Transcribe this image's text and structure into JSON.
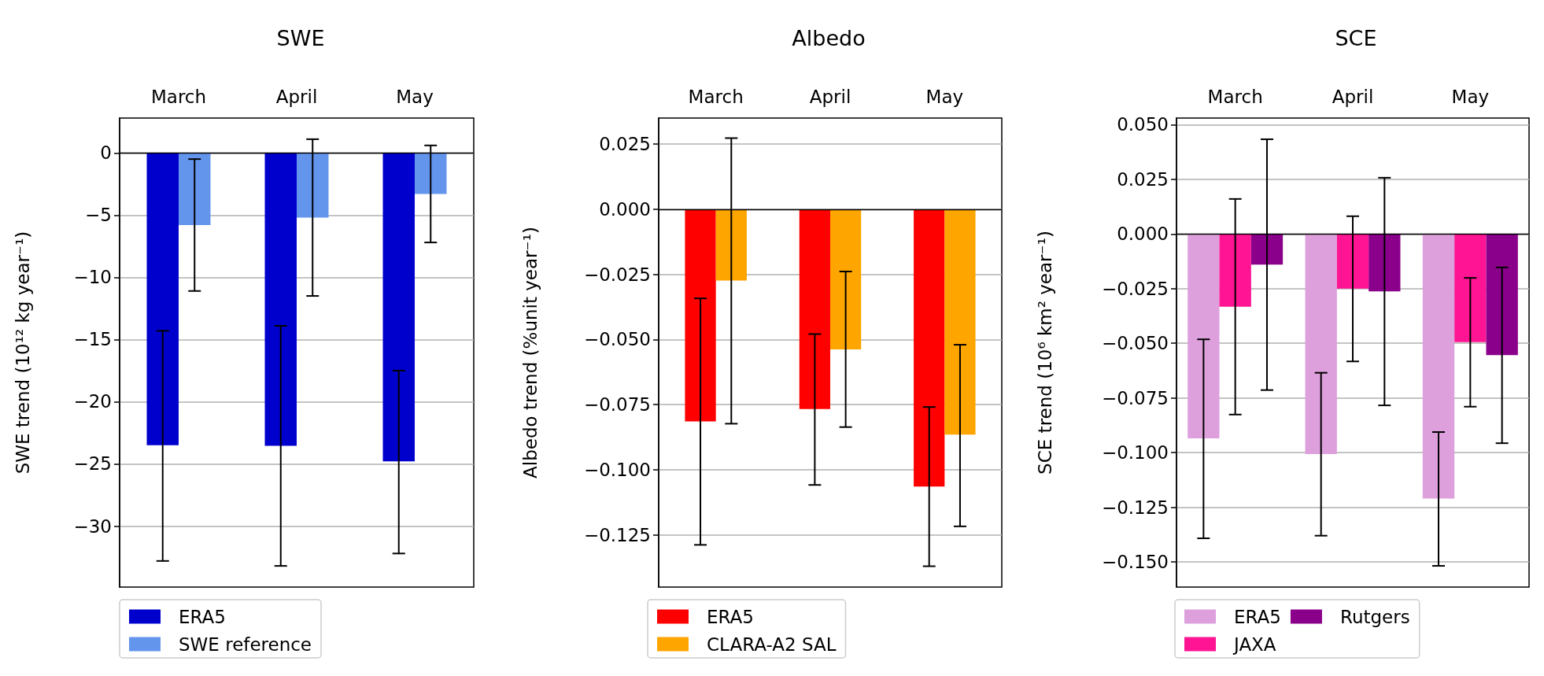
{
  "chart_data": [
    {
      "type": "bar",
      "title": "SWE",
      "ylabel": "SWE trend (10¹² kg year⁻¹)",
      "categories": [
        "March",
        "April",
        "May"
      ],
      "series": [
        {
          "name": "ERA5",
          "color": "#0000cd",
          "values": [
            -23.5,
            -23.55,
            -24.8
          ],
          "errors": [
            [
              -32.8,
              -14.3
            ],
            [
              -33.2,
              -13.9
            ],
            [
              -32.2,
              -17.5
            ]
          ]
        },
        {
          "name": "SWE reference",
          "color": "#6495ed",
          "values": [
            -5.8,
            -5.2,
            -3.3
          ],
          "errors": [
            [
              -11.1,
              -0.5
            ],
            [
              -11.5,
              1.1
            ],
            [
              -7.2,
              0.6
            ]
          ]
        }
      ],
      "ylim": [
        -34.9,
        2.8
      ],
      "yticks": [
        0,
        {
          "value": -5,
          "label": "−5"
        },
        {
          "value": -10,
          "label": "−10"
        },
        {
          "value": -15,
          "label": "−15"
        },
        {
          "value": -20,
          "label": "−20"
        },
        {
          "value": -25,
          "label": "−25"
        },
        {
          "value": -30,
          "label": "−30"
        }
      ],
      "grid": "y",
      "legend": "bottom",
      "ref_lines": [
        {
          "axis": "y",
          "value": 0,
          "color": "#000000"
        }
      ]
    },
    {
      "type": "bar",
      "title": "Albedo",
      "ylabel": "Albedo trend (%unit year⁻¹)",
      "categories": [
        "March",
        "April",
        "May"
      ],
      "series": [
        {
          "name": "ERA5",
          "color": "#ff0000",
          "values": [
            -0.0814,
            -0.0767,
            -0.1064
          ],
          "errors": [
            [
              -0.1288,
              -0.0342
            ],
            [
              -0.1058,
              -0.0479
            ],
            [
              -0.137,
              -0.0759
            ]
          ]
        },
        {
          "name": "CLARA-A2 SAL",
          "color": "#ffa500",
          "values": [
            -0.0274,
            -0.0538,
            -0.0865
          ],
          "errors": [
            [
              -0.0823,
              0.0273
            ],
            [
              -0.0836,
              -0.0239
            ],
            [
              -0.1217,
              -0.052
            ]
          ]
        }
      ],
      "ylim": [
        -0.145,
        0.035
      ],
      "yticks": [
        {
          "value": 0.025,
          "label": "0.025"
        },
        {
          "value": 0,
          "label": "0.000"
        },
        {
          "value": -0.025,
          "label": "−0.025"
        },
        {
          "value": -0.05,
          "label": "−0.050"
        },
        {
          "value": -0.075,
          "label": "−0.075"
        },
        {
          "value": -0.1,
          "label": "−0.100"
        },
        {
          "value": -0.125,
          "label": "−0.125"
        }
      ],
      "grid": "y",
      "legend": "bottom",
      "ref_lines": [
        {
          "axis": "y",
          "value": 0,
          "color": "#000000"
        }
      ]
    },
    {
      "type": "bar",
      "title": "SCE",
      "ylabel": "SCE trend (10⁶ km² year⁻¹)",
      "categories": [
        "March",
        "April",
        "May"
      ],
      "series": [
        {
          "name": "ERA5",
          "color": "#dda0dd",
          "values": [
            -0.0935,
            -0.1007,
            -0.121
          ],
          "errors": [
            [
              -0.1392,
              -0.0482
            ],
            [
              -0.138,
              -0.0635
            ],
            [
              -0.1518,
              -0.0906
            ]
          ]
        },
        {
          "name": "JAXA",
          "color": "#ff1493",
          "values": [
            -0.0333,
            -0.025,
            -0.0495
          ],
          "errors": [
            [
              -0.0826,
              0.016
            ],
            [
              -0.0583,
              0.0081
            ],
            [
              -0.079,
              -0.0201
            ]
          ]
        },
        {
          "name": "Rutgers",
          "color": "#8b008b",
          "values": [
            -0.014,
            -0.0263,
            -0.0554
          ],
          "errors": [
            [
              -0.0714,
              0.0433
            ],
            [
              -0.0784,
              0.0257
            ],
            [
              -0.0957,
              -0.0153
            ]
          ]
        }
      ],
      "ylim": [
        -0.1615,
        0.053
      ],
      "yticks": [
        {
          "value": 0.05,
          "label": "0.050"
        },
        {
          "value": 0.025,
          "label": "0.025"
        },
        {
          "value": 0,
          "label": "0.000"
        },
        {
          "value": -0.025,
          "label": "−0.025"
        },
        {
          "value": -0.05,
          "label": "−0.050"
        },
        {
          "value": -0.075,
          "label": "−0.075"
        },
        {
          "value": -0.1,
          "label": "−0.100"
        },
        {
          "value": -0.125,
          "label": "−0.125"
        },
        {
          "value": -0.15,
          "label": "−0.150"
        }
      ],
      "grid": "y",
      "legend": "bottom",
      "ref_lines": [
        {
          "axis": "y",
          "value": 0,
          "color": "#000000"
        }
      ]
    }
  ]
}
